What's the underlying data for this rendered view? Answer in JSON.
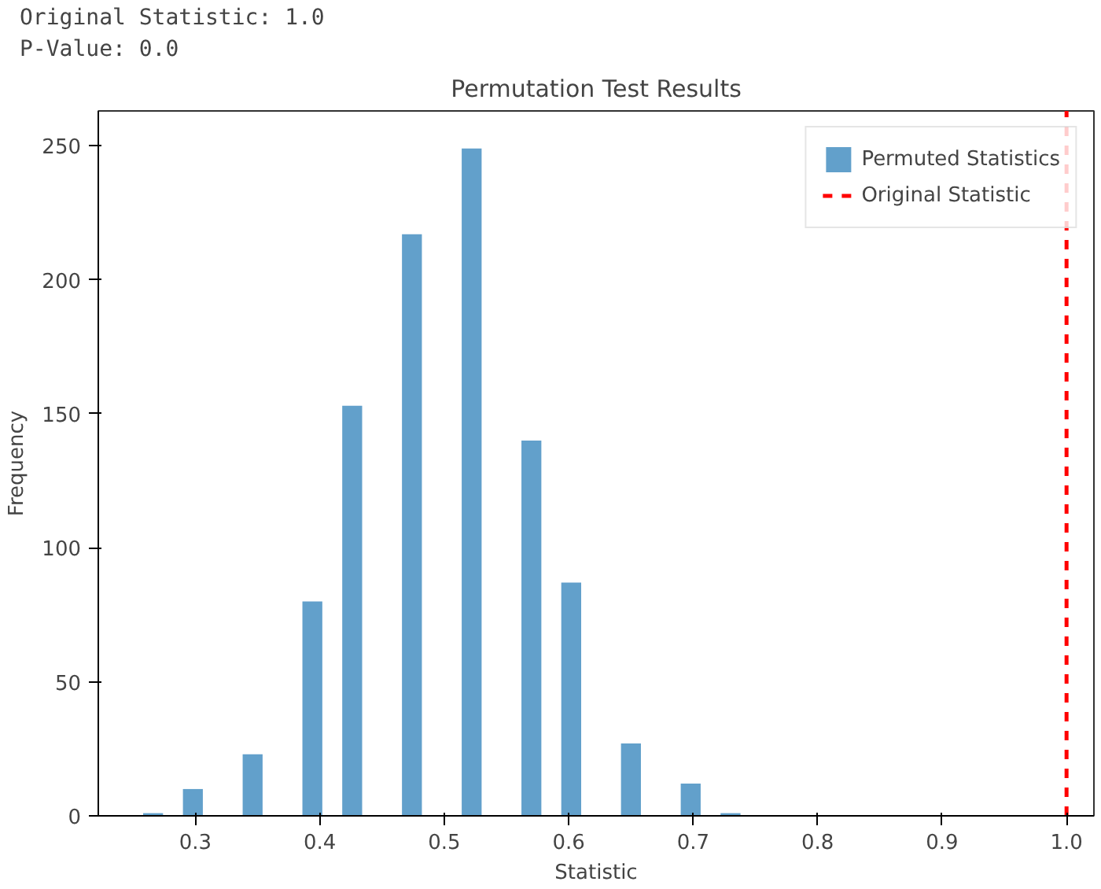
{
  "chart_data": {
    "type": "histogram",
    "title": "Permutation Test Results",
    "xlabel": "Statistic",
    "ylabel": "Frequency",
    "annotations": [
      "Original Statistic: 1.0",
      "P-Value: 0.0"
    ],
    "bins": [
      0.258,
      0.274,
      0.29,
      0.306,
      0.322,
      0.338,
      0.354,
      0.37,
      0.386,
      0.402,
      0.418,
      0.434,
      0.45,
      0.466,
      0.482,
      0.498,
      0.514,
      0.53,
      0.546,
      0.562,
      0.578,
      0.594,
      0.61,
      0.626,
      0.642,
      0.658,
      0.674,
      0.69,
      0.706,
      0.722,
      0.738
    ],
    "series": [
      {
        "name": "Permuted Statistics",
        "color": "#62a0cb",
        "values": [
          1,
          0,
          10,
          0,
          0,
          23,
          0,
          0,
          80,
          0,
          153,
          0,
          0,
          217,
          0,
          0,
          249,
          0,
          0,
          140,
          0,
          87,
          0,
          0,
          27,
          0,
          0,
          12,
          0,
          1
        ]
      }
    ],
    "ref_lines": [
      {
        "axis": "x",
        "value": 1.0,
        "label": "Original Statistic",
        "color": "#ff0000",
        "line_style": "dashed"
      }
    ],
    "xlim": [
      0.222,
      1.022
    ],
    "ylim": [
      0,
      263
    ],
    "xticks": [
      0.3,
      0.4,
      0.5,
      0.6,
      0.7,
      0.8,
      0.9,
      {
        "value": 1.0,
        "label": "1.0"
      }
    ],
    "yticks": [
      0,
      50,
      100,
      150,
      200,
      250
    ],
    "grid": false,
    "legend": "top right"
  }
}
